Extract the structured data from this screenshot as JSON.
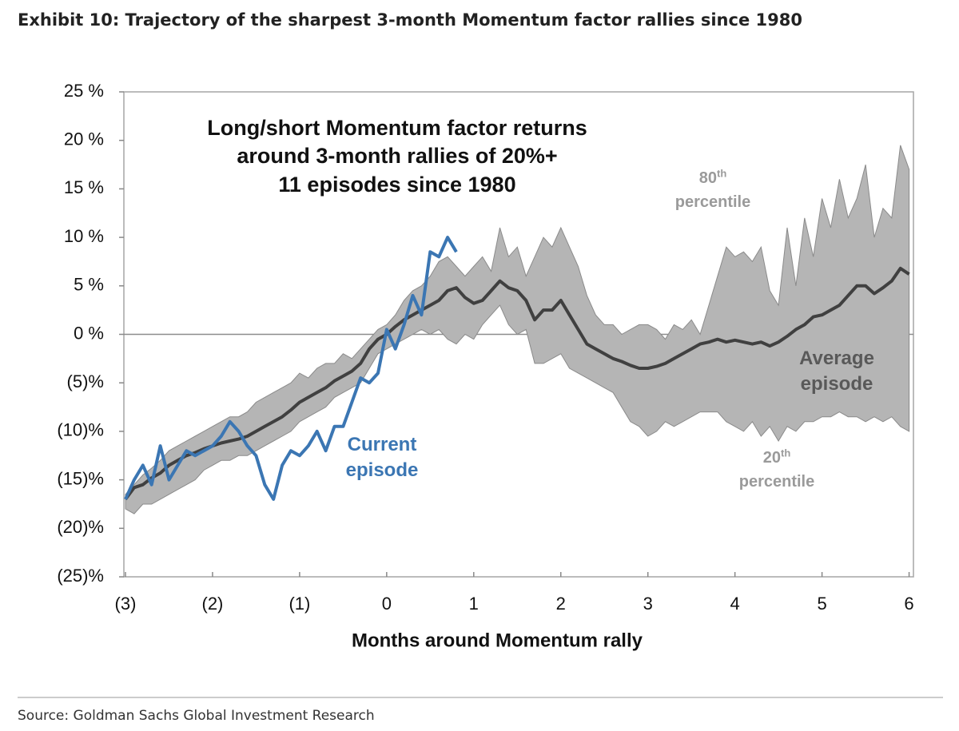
{
  "title": "Exhibit 10: Trajectory of the sharpest 3-month Momentum factor rallies since 1980",
  "source": "Source: Goldman Sachs Global Investment Research",
  "chart_data": {
    "type": "line",
    "annotation": [
      "Long/short Momentum factor returns",
      "around 3-month rallies of 20%+",
      "11 episodes since 1980"
    ],
    "x_label": "Months around Momentum rally",
    "xlim": [
      -3,
      6.05
    ],
    "xticks": [
      {
        "value": -3,
        "label": "(3)"
      },
      {
        "value": -2,
        "label": "(2)"
      },
      {
        "value": -1,
        "label": "(1)"
      },
      0,
      1,
      2,
      3,
      4,
      5,
      6
    ],
    "ylim": [
      -25,
      25
    ],
    "yticks": [
      {
        "value": 25,
        "label": "25 %"
      },
      {
        "value": 20,
        "label": "20 %"
      },
      {
        "value": 15,
        "label": "15 %"
      },
      {
        "value": 10,
        "label": "10 %"
      },
      {
        "value": 5,
        "label": "5 %"
      },
      {
        "value": 0,
        "label": "0 %"
      },
      {
        "value": -5,
        "label": "(5)%"
      },
      {
        "value": -10,
        "label": "(10)%"
      },
      {
        "value": -15,
        "label": "(15)%"
      },
      {
        "value": -20,
        "label": "(20)%"
      },
      {
        "value": -25,
        "label": "(25)%"
      }
    ],
    "zero_line": true,
    "x": [
      -3,
      -2.9,
      -2.8,
      -2.7,
      -2.6,
      -2.5,
      -2.4,
      -2.3,
      -2.2,
      -2.1,
      -2,
      -1.9,
      -1.8,
      -1.7,
      -1.6,
      -1.5,
      -1.4,
      -1.3,
      -1.2,
      -1.1,
      -1,
      -0.9,
      -0.8,
      -0.7,
      -0.6,
      -0.5,
      -0.4,
      -0.3,
      -0.2,
      -0.1,
      0,
      0.1,
      0.2,
      0.3,
      0.4,
      0.5,
      0.6,
      0.7,
      0.8,
      0.9,
      1,
      1.1,
      1.2,
      1.3,
      1.4,
      1.5,
      1.6,
      1.7,
      1.8,
      1.9,
      2,
      2.1,
      2.2,
      2.3,
      2.4,
      2.5,
      2.6,
      2.7,
      2.8,
      2.9,
      3,
      3.1,
      3.2,
      3.3,
      3.4,
      3.5,
      3.6,
      3.7,
      3.8,
      3.9,
      4,
      4.1,
      4.2,
      4.3,
      4.4,
      4.5,
      4.6,
      4.7,
      4.8,
      4.9,
      5,
      5.1,
      5.2,
      5.3,
      5.4,
      5.5,
      5.6,
      5.7,
      5.8,
      5.9,
      6
    ],
    "band": {
      "color": "#b5b5b5",
      "edge_color": "#8a8a8a",
      "upper_label": {
        "number": "80",
        "suffix": "th",
        "text": "percentile"
      },
      "lower_label": {
        "number": "20",
        "suffix": "th",
        "text": "percentile"
      },
      "upper": [
        -16.5,
        -15.5,
        -14.5,
        -13.8,
        -13,
        -12,
        -11.5,
        -11,
        -10.5,
        -10,
        -9.5,
        -9,
        -8.5,
        -8.5,
        -8,
        -7,
        -6.5,
        -6,
        -5.5,
        -5,
        -4,
        -4.5,
        -3.5,
        -3,
        -3,
        -2,
        -2.5,
        -1.5,
        -0.5,
        0.5,
        1,
        2,
        3.5,
        4.5,
        5,
        6,
        7.5,
        8,
        7,
        6,
        7,
        8,
        6.5,
        11,
        8,
        9,
        6,
        8,
        10,
        9,
        11,
        9,
        7,
        4,
        2,
        1,
        1,
        0,
        0.5,
        1,
        1,
        0.5,
        -0.5,
        1,
        0.5,
        1.5,
        0,
        3,
        6,
        9,
        8,
        8.5,
        7.5,
        9,
        4.5,
        3,
        11,
        5,
        12,
        8,
        14,
        11,
        16,
        12,
        14,
        17.5,
        10,
        13,
        12,
        19.5,
        17
      ],
      "lower": [
        -18,
        -18.5,
        -17.5,
        -17.5,
        -17,
        -16.5,
        -16,
        -15.5,
        -15,
        -14,
        -13.5,
        -13,
        -13,
        -12.5,
        -12.5,
        -12,
        -11.5,
        -11,
        -10.5,
        -10,
        -9,
        -8.5,
        -8,
        -7.5,
        -6.5,
        -6,
        -5.5,
        -5,
        -3.5,
        -2,
        -1.5,
        -1,
        -0.5,
        0,
        0.5,
        0,
        0.5,
        -0.5,
        -1,
        0,
        -0.5,
        1,
        2,
        3,
        1,
        0,
        0.5,
        -3,
        -3,
        -2.5,
        -2,
        -3.5,
        -4,
        -4.5,
        -5,
        -5.5,
        -6,
        -7.5,
        -9,
        -9.5,
        -10.5,
        -10,
        -9,
        -9.5,
        -9,
        -8.5,
        -8,
        -8,
        -8,
        -9,
        -9.5,
        -10,
        -9,
        -10.5,
        -9.5,
        -11,
        -9.5,
        -10,
        -9,
        -9,
        -8.5,
        -8.5,
        -8,
        -8.5,
        -8.5,
        -9,
        -8.5,
        -9,
        -8.5,
        -9.5,
        -10
      ]
    },
    "series": [
      {
        "name": "Average episode",
        "color": "#404040",
        "values": [
          -17,
          -15.8,
          -15.5,
          -14.8,
          -14.3,
          -13.5,
          -13,
          -12.5,
          -12.2,
          -11.8,
          -11.5,
          -11.2,
          -11,
          -10.8,
          -10.5,
          -10,
          -9.5,
          -9,
          -8.5,
          -7.8,
          -7,
          -6.5,
          -6,
          -5.5,
          -4.8,
          -4.3,
          -3.8,
          -3,
          -1.5,
          -0.5,
          0,
          0.8,
          1.5,
          2,
          2.5,
          3,
          3.5,
          4.5,
          4.8,
          3.8,
          3.2,
          3.5,
          4.5,
          5.5,
          4.8,
          4.5,
          3.5,
          1.5,
          2.5,
          2.5,
          3.5,
          2,
          0.5,
          -1,
          -1.5,
          -2,
          -2.5,
          -2.8,
          -3.2,
          -3.5,
          -3.5,
          -3.3,
          -3,
          -2.5,
          -2,
          -1.5,
          -1,
          -0.8,
          -0.5,
          -0.8,
          -0.6,
          -0.8,
          -1,
          -0.8,
          -1.2,
          -0.8,
          -0.2,
          0.5,
          1,
          1.8,
          2,
          2.5,
          3,
          4,
          5,
          5,
          4.2,
          4.8,
          5.5,
          6.8,
          6.2
        ]
      },
      {
        "name": "Current episode",
        "color": "#3b76b3",
        "x": [
          -3,
          -2.9,
          -2.8,
          -2.7,
          -2.6,
          -2.5,
          -2.4,
          -2.3,
          -2.2,
          -2.1,
          -2,
          -1.9,
          -1.8,
          -1.7,
          -1.6,
          -1.5,
          -1.4,
          -1.3,
          -1.2,
          -1.1,
          -1,
          -0.9,
          -0.8,
          -0.7,
          -0.6,
          -0.5,
          -0.4,
          -0.3,
          -0.2,
          -0.1,
          0,
          0.1,
          0.2,
          0.3,
          0.4,
          0.5,
          0.6,
          0.7,
          0.8
        ],
        "values": [
          -17,
          -15,
          -13.5,
          -15.5,
          -11.5,
          -15,
          -13.5,
          -12,
          -12.5,
          -12,
          -11.5,
          -10.5,
          -9,
          -10,
          -11.5,
          -12.5,
          -15.5,
          -17,
          -13.5,
          -12,
          -12.5,
          -11.5,
          -10,
          -12,
          -9.5,
          -9.5,
          -7,
          -4.5,
          -5,
          -4,
          0.5,
          -1.5,
          1,
          4,
          2,
          8.5,
          8,
          10,
          8.5
        ]
      }
    ]
  }
}
